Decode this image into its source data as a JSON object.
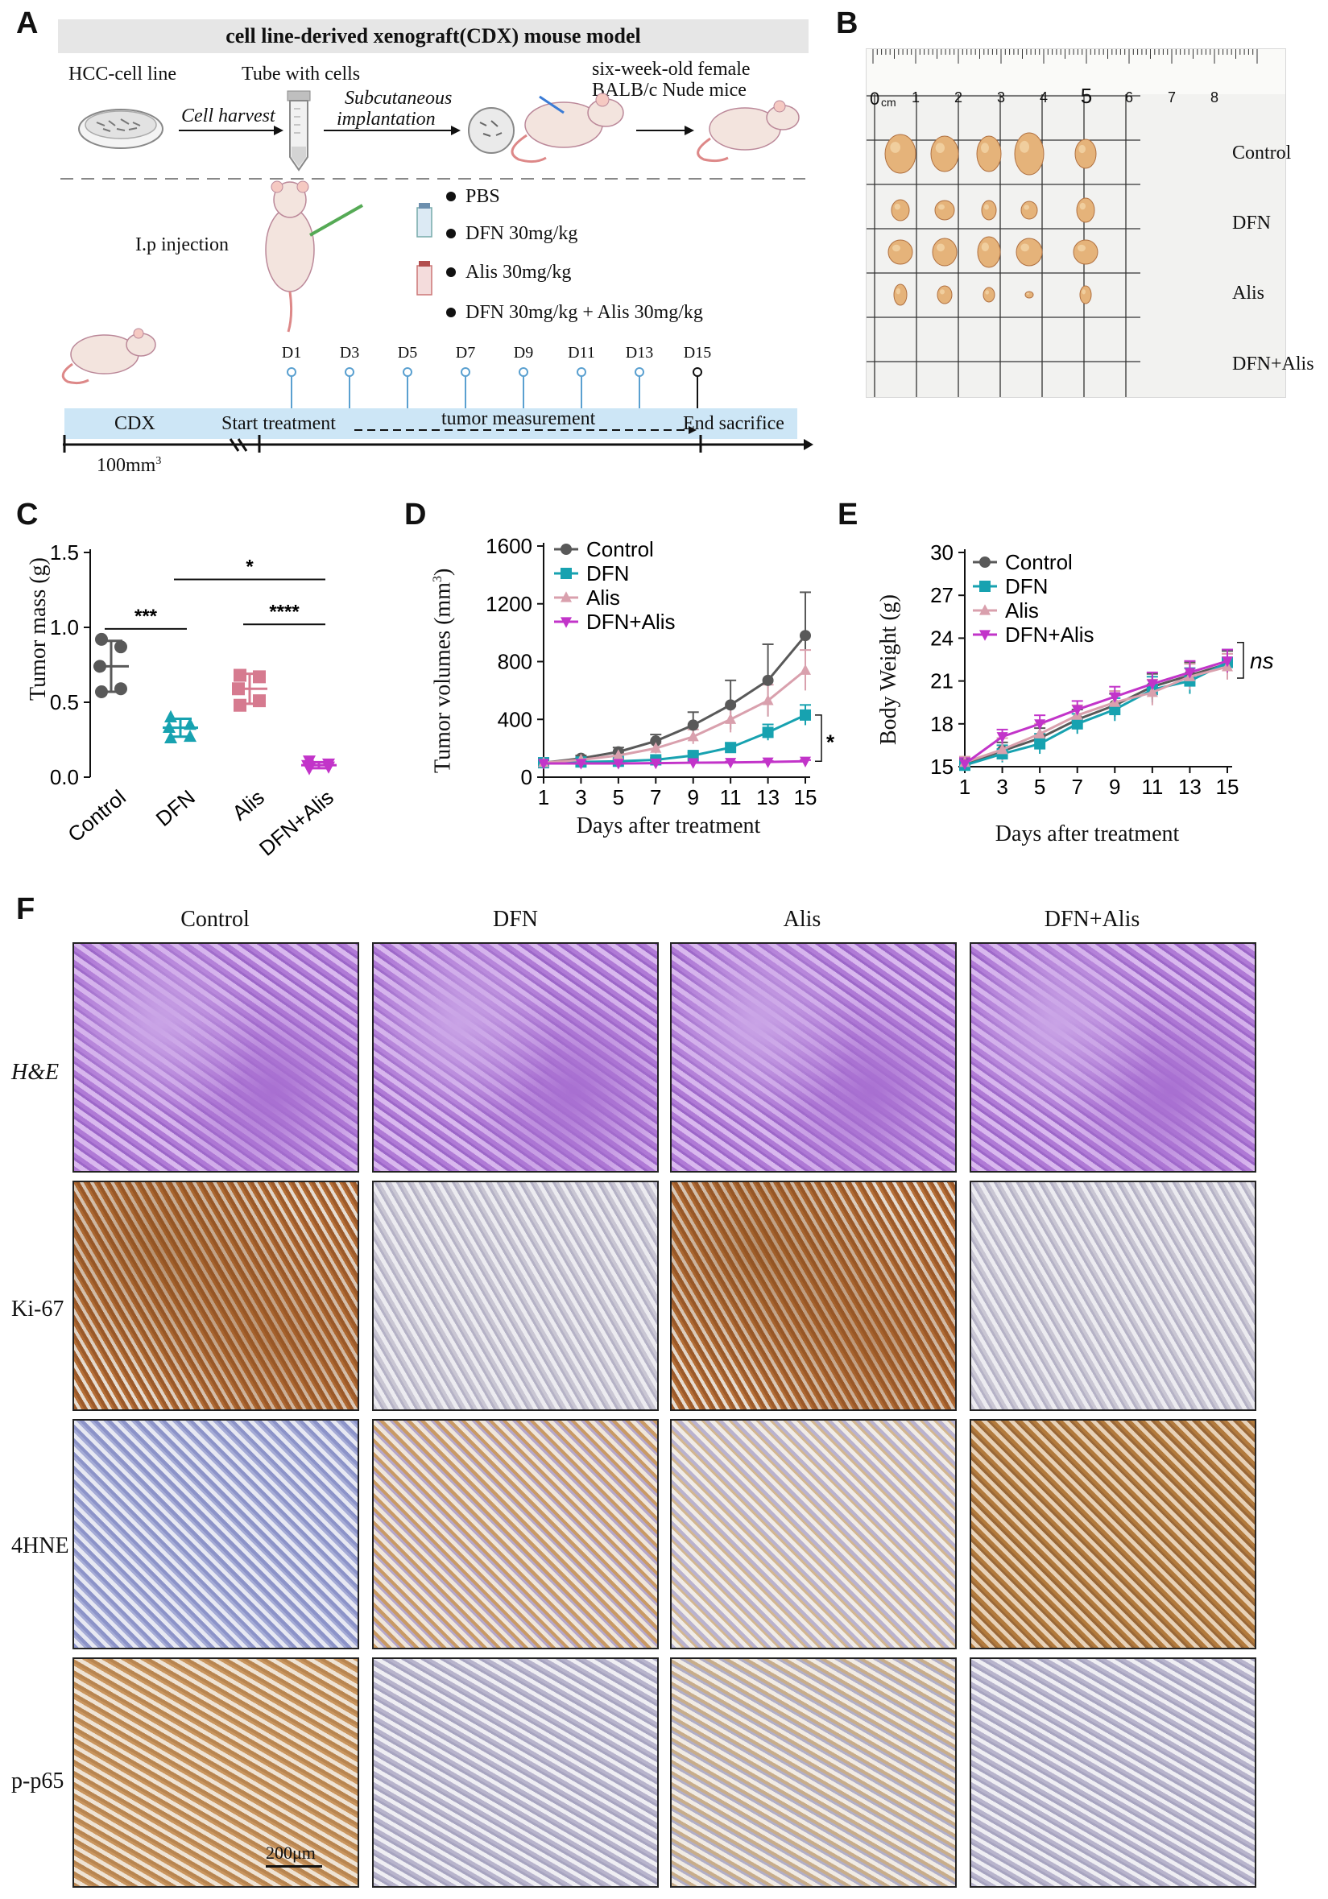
{
  "panel_letters": {
    "a": "A",
    "b": "B",
    "c": "C",
    "d": "D",
    "e": "E",
    "f": "F"
  },
  "panelA": {
    "banner": "cell line-derived xenograft(CDX) mouse model",
    "hcc_cell_line": "HCC-cell line",
    "tube_with_cells": "Tube with cells",
    "cell_harvest": "Cell harvest",
    "subcutaneous": "Subcutaneous",
    "implantation": "implantation",
    "mice_line1": "six-week-old female",
    "mice_line2": "BALB/c Nude mice",
    "ip_injection": "I.p injection",
    "treatments": [
      "PBS",
      "DFN 30mg/kg",
      "Alis 30mg/kg",
      "DFN 30mg/kg + Alis 30mg/kg"
    ],
    "days": [
      "D1",
      "D3",
      "D5",
      "D7",
      "D9",
      "D11",
      "D13",
      "D15"
    ],
    "cdx": "CDX",
    "start_treatment": "Start treatment",
    "tumor_measurement": "tumor measurement",
    "end_sacrifice": "End sacrifice",
    "volume_label": "100mm",
    "volume_sup": "3",
    "colors": {
      "day_pin": "#5aa0d0",
      "timeline_bar": "#cde6f6",
      "banner": "#e6e6e6"
    }
  },
  "panelB": {
    "ruler_labels": [
      "0",
      "1",
      "2",
      "3",
      "4",
      "5",
      "6",
      "7",
      "8"
    ],
    "ruler_unit": "cm",
    "rows": [
      "Control",
      "DFN",
      "Alis",
      "DFN+Alis"
    ]
  },
  "panelC": {
    "ylabel": "Tumor mass (g)",
    "yticks": [
      "0.0",
      "0.5",
      "1.0",
      "1.5"
    ],
    "groups": [
      "Control",
      "DFN",
      "Alis",
      "DFN+Alis"
    ],
    "sig": [
      "***",
      "*",
      "****"
    ]
  },
  "panelD": {
    "ylabel": "Tumor volumes (mm",
    "ylabel_sup": "3",
    "ylabel_close": ")",
    "xlabel": "Days after treatment",
    "yticks": [
      "0",
      "400",
      "800",
      "1200",
      "1600"
    ],
    "xticks": [
      "1",
      "3",
      "5",
      "7",
      "9",
      "11",
      "13",
      "15"
    ],
    "sig": "*"
  },
  "panelE": {
    "ylabel": "Body Weight (g)",
    "xlabel": "Days after treatment",
    "yticks": [
      "15",
      "18",
      "21",
      "24",
      "27",
      "30"
    ],
    "xticks": [
      "1",
      "3",
      "5",
      "7",
      "9",
      "11",
      "13",
      "15"
    ],
    "sig": "ns"
  },
  "panelF": {
    "columns": [
      "Control",
      "DFN",
      "Alis",
      "DFN+Alis"
    ],
    "rows": [
      "H&E",
      "Ki-67",
      "4HNE",
      "p-p65"
    ],
    "scale_bar": "200μm"
  },
  "chart_data": [
    {
      "type": "scatter",
      "panel": "C",
      "ylabel": "Tumor mass (g)",
      "ylim": [
        0,
        1.5
      ],
      "categories": [
        "Control",
        "DFN",
        "Alis",
        "DFN+Alis"
      ],
      "points": [
        [
          0.92,
          0.87,
          0.74,
          0.59,
          0.57
        ],
        [
          0.4,
          0.35,
          0.33,
          0.27,
          0.26
        ],
        [
          0.68,
          0.67,
          0.59,
          0.51,
          0.48
        ],
        [
          0.11,
          0.09,
          0.08,
          0.07,
          0.06
        ]
      ],
      "mean": [
        0.74,
        0.33,
        0.59,
        0.08
      ],
      "sd": [
        0.17,
        0.06,
        0.1,
        0.02
      ],
      "series_colors": [
        "#595959",
        "#17a2b0",
        "#d67a8f",
        "#c234c9"
      ],
      "comparisons": [
        {
          "from": "Control",
          "to": "DFN",
          "label": "***"
        },
        {
          "from": "DFN",
          "to": "DFN+Alis",
          "label": "*"
        },
        {
          "from": "Alis",
          "to": "DFN+Alis",
          "label": "****"
        }
      ]
    },
    {
      "type": "line",
      "panel": "D",
      "xlabel": "Days after treatment",
      "ylabel": "Tumor volumes (mm3)",
      "ylim": [
        0,
        1600
      ],
      "x": [
        1,
        3,
        5,
        7,
        9,
        11,
        13,
        15
      ],
      "legend_position": "top-left",
      "series": [
        {
          "name": "Control",
          "color": "#595959",
          "marker": "circle",
          "values": [
            100,
            130,
            175,
            250,
            360,
            500,
            670,
            980
          ],
          "err": [
            10,
            20,
            30,
            45,
            90,
            170,
            250,
            300
          ]
        },
        {
          "name": "DFN",
          "color": "#17a2b0",
          "marker": "square",
          "values": [
            100,
            105,
            110,
            120,
            150,
            205,
            310,
            430
          ],
          "err": [
            8,
            10,
            12,
            15,
            20,
            30,
            55,
            70
          ]
        },
        {
          "name": "Alis",
          "color": "#d9a0ad",
          "marker": "triangle",
          "values": [
            100,
            120,
            150,
            200,
            280,
            400,
            530,
            740
          ],
          "err": [
            10,
            15,
            25,
            35,
            50,
            90,
            110,
            140
          ]
        },
        {
          "name": "DFN+Alis",
          "color": "#c234c9",
          "marker": "triangle-down",
          "values": [
            95,
            95,
            95,
            97,
            100,
            102,
            105,
            110
          ],
          "err": [
            5,
            5,
            5,
            6,
            6,
            6,
            7,
            8
          ]
        }
      ]
    },
    {
      "type": "line",
      "panel": "E",
      "xlabel": "Days after treatment",
      "ylabel": "Body Weight (g)",
      "ylim": [
        15,
        30
      ],
      "x": [
        1,
        3,
        5,
        7,
        9,
        11,
        13,
        15
      ],
      "legend_position": "top-left",
      "series": [
        {
          "name": "Control",
          "color": "#595959",
          "marker": "circle",
          "values": [
            15.2,
            16.1,
            17.0,
            18.3,
            19.3,
            20.6,
            21.4,
            22.2
          ],
          "err": [
            0.4,
            0.6,
            0.7,
            0.7,
            0.8,
            0.9,
            0.9,
            0.9
          ]
        },
        {
          "name": "DFN",
          "color": "#17a2b0",
          "marker": "square",
          "values": [
            15.1,
            15.9,
            16.6,
            18.0,
            19.0,
            20.4,
            21.0,
            22.3
          ],
          "err": [
            0.4,
            0.6,
            0.7,
            0.7,
            0.8,
            0.9,
            0.9,
            0.9
          ]
        },
        {
          "name": "Alis",
          "color": "#d9a0ad",
          "marker": "triangle",
          "values": [
            15.3,
            16.2,
            17.3,
            18.6,
            19.5,
            20.2,
            21.3,
            22.0
          ],
          "err": [
            0.4,
            0.8,
            0.7,
            0.7,
            0.8,
            0.9,
            0.9,
            0.9
          ]
        },
        {
          "name": "DFN+Alis",
          "color": "#c234c9",
          "marker": "triangle-down",
          "values": [
            15.2,
            17.1,
            18.0,
            19.0,
            19.9,
            20.8,
            21.6,
            22.4
          ],
          "err": [
            0.4,
            0.5,
            0.6,
            0.6,
            0.7,
            0.8,
            0.8,
            0.8
          ]
        }
      ]
    }
  ]
}
